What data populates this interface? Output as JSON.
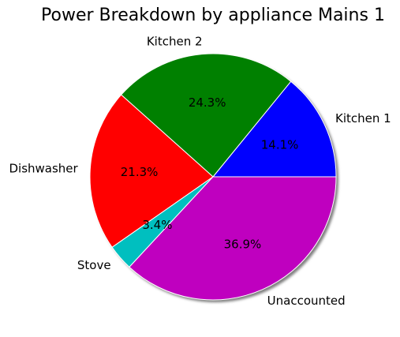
{
  "chart_data": {
    "type": "pie",
    "title": "Power Breakdown by appliance Mains 1",
    "slices": [
      {
        "label": "Kitchen 1",
        "value": 14.1,
        "pct_label": "14.1%",
        "color": "#0000ff"
      },
      {
        "label": "Kitchen 2",
        "value": 24.3,
        "pct_label": "24.3%",
        "color": "#008000"
      },
      {
        "label": "Dishwasher",
        "value": 21.3,
        "pct_label": "21.3%",
        "color": "#ff0000"
      },
      {
        "label": "Stove",
        "value": 3.4,
        "pct_label": "3.4%",
        "color": "#00bfbf"
      },
      {
        "label": "Unaccounted",
        "value": 36.9,
        "pct_label": "36.9%",
        "color": "#bf00bf"
      }
    ],
    "start_angle_deg": 0,
    "direction": "counterclockwise",
    "shadow": true,
    "edge_color": "#ffffff"
  }
}
